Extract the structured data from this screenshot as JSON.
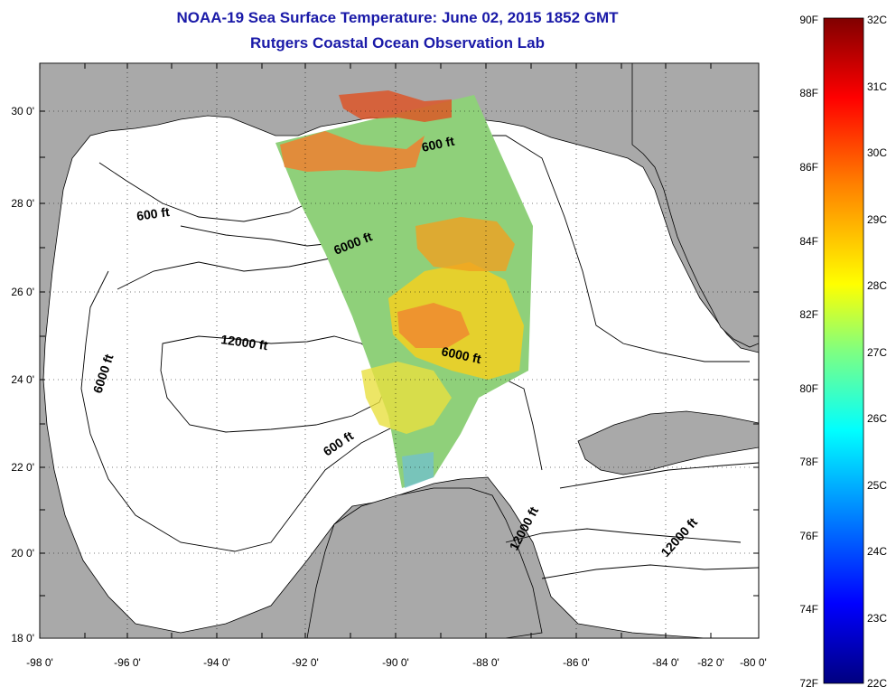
{
  "header": {
    "title": "NOAA-19 Sea Surface Temperature:  June 02, 2015 1852 GMT",
    "subtitle": "Rutgers Coastal Ocean Observation Lab"
  },
  "map": {
    "lat_labels": [
      "30 0'",
      "28 0'",
      "26 0'",
      "24 0'",
      "22 0'",
      "20 0'",
      "18 0'"
    ],
    "lon_labels": [
      "-98 0'",
      "-96 0'",
      "-94 0'",
      "-92 0'",
      "-90 0'",
      "-88 0'",
      "-86 0'",
      "-84 0'",
      "-82 0'",
      "-80 0'"
    ],
    "contours": [
      {
        "text": "600 ft"
      },
      {
        "text": "600 ft"
      },
      {
        "text": "6000 ft"
      },
      {
        "text": "12000 ft"
      },
      {
        "text": "6000 ft"
      },
      {
        "text": "6000 ft"
      },
      {
        "text": "600 ft"
      },
      {
        "text": "12000 ft"
      },
      {
        "text": "12000 ft"
      }
    ],
    "land_color": "#a9a9a9",
    "grid": "dotted"
  },
  "colorbar": {
    "f_labels": [
      "90F",
      "88F",
      "86F",
      "84F",
      "82F",
      "80F",
      "78F",
      "76F",
      "74F",
      "72F"
    ],
    "c_labels": [
      "32C",
      "31C",
      "30C",
      "29C",
      "28C",
      "27C",
      "26C",
      "25C",
      "24C",
      "23C",
      "22C"
    ],
    "colors": [
      "#800000",
      "#ff0000",
      "#ff8000",
      "#ffff00",
      "#80ff80",
      "#00ffff",
      "#0080ff",
      "#0000ff",
      "#000080"
    ]
  }
}
